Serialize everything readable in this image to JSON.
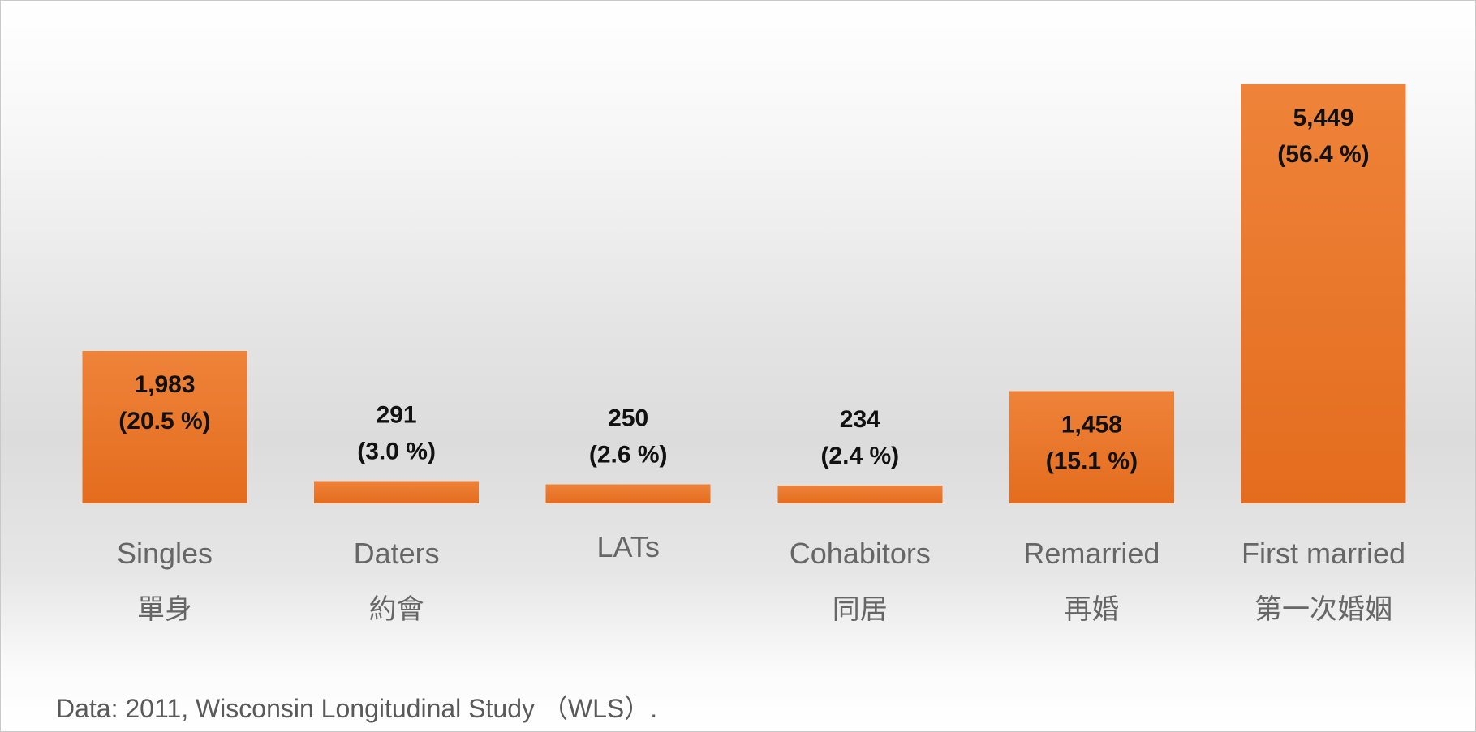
{
  "chart_data": {
    "type": "bar",
    "title": "",
    "xlabel": "",
    "ylabel": "",
    "ylim": [
      0,
      5449
    ],
    "grid": false,
    "legend": "none",
    "categories": [
      "Singles",
      "Daters",
      "LATs",
      "Cohabitors",
      "Remarried",
      "First married"
    ],
    "categories_zh": [
      "單身",
      "約會",
      "",
      "同居",
      "再婚",
      "第一次婚姻"
    ],
    "values": [
      1983,
      291,
      250,
      234,
      1458,
      5449
    ],
    "value_labels": [
      "1,983",
      "291",
      "250",
      "234",
      "1,458",
      "5,449"
    ],
    "percent_labels": [
      "(20.5 %)",
      "(3.0 %)",
      "(2.6 %)",
      "(2.4 %)",
      "(15.1 %)",
      "(56.4 %)"
    ],
    "bar_color": "#E46C1E",
    "bar_color_light": "#EE8339"
  },
  "footnote": "Data: 2011, Wisconsin Longitudinal Study （WLS）."
}
